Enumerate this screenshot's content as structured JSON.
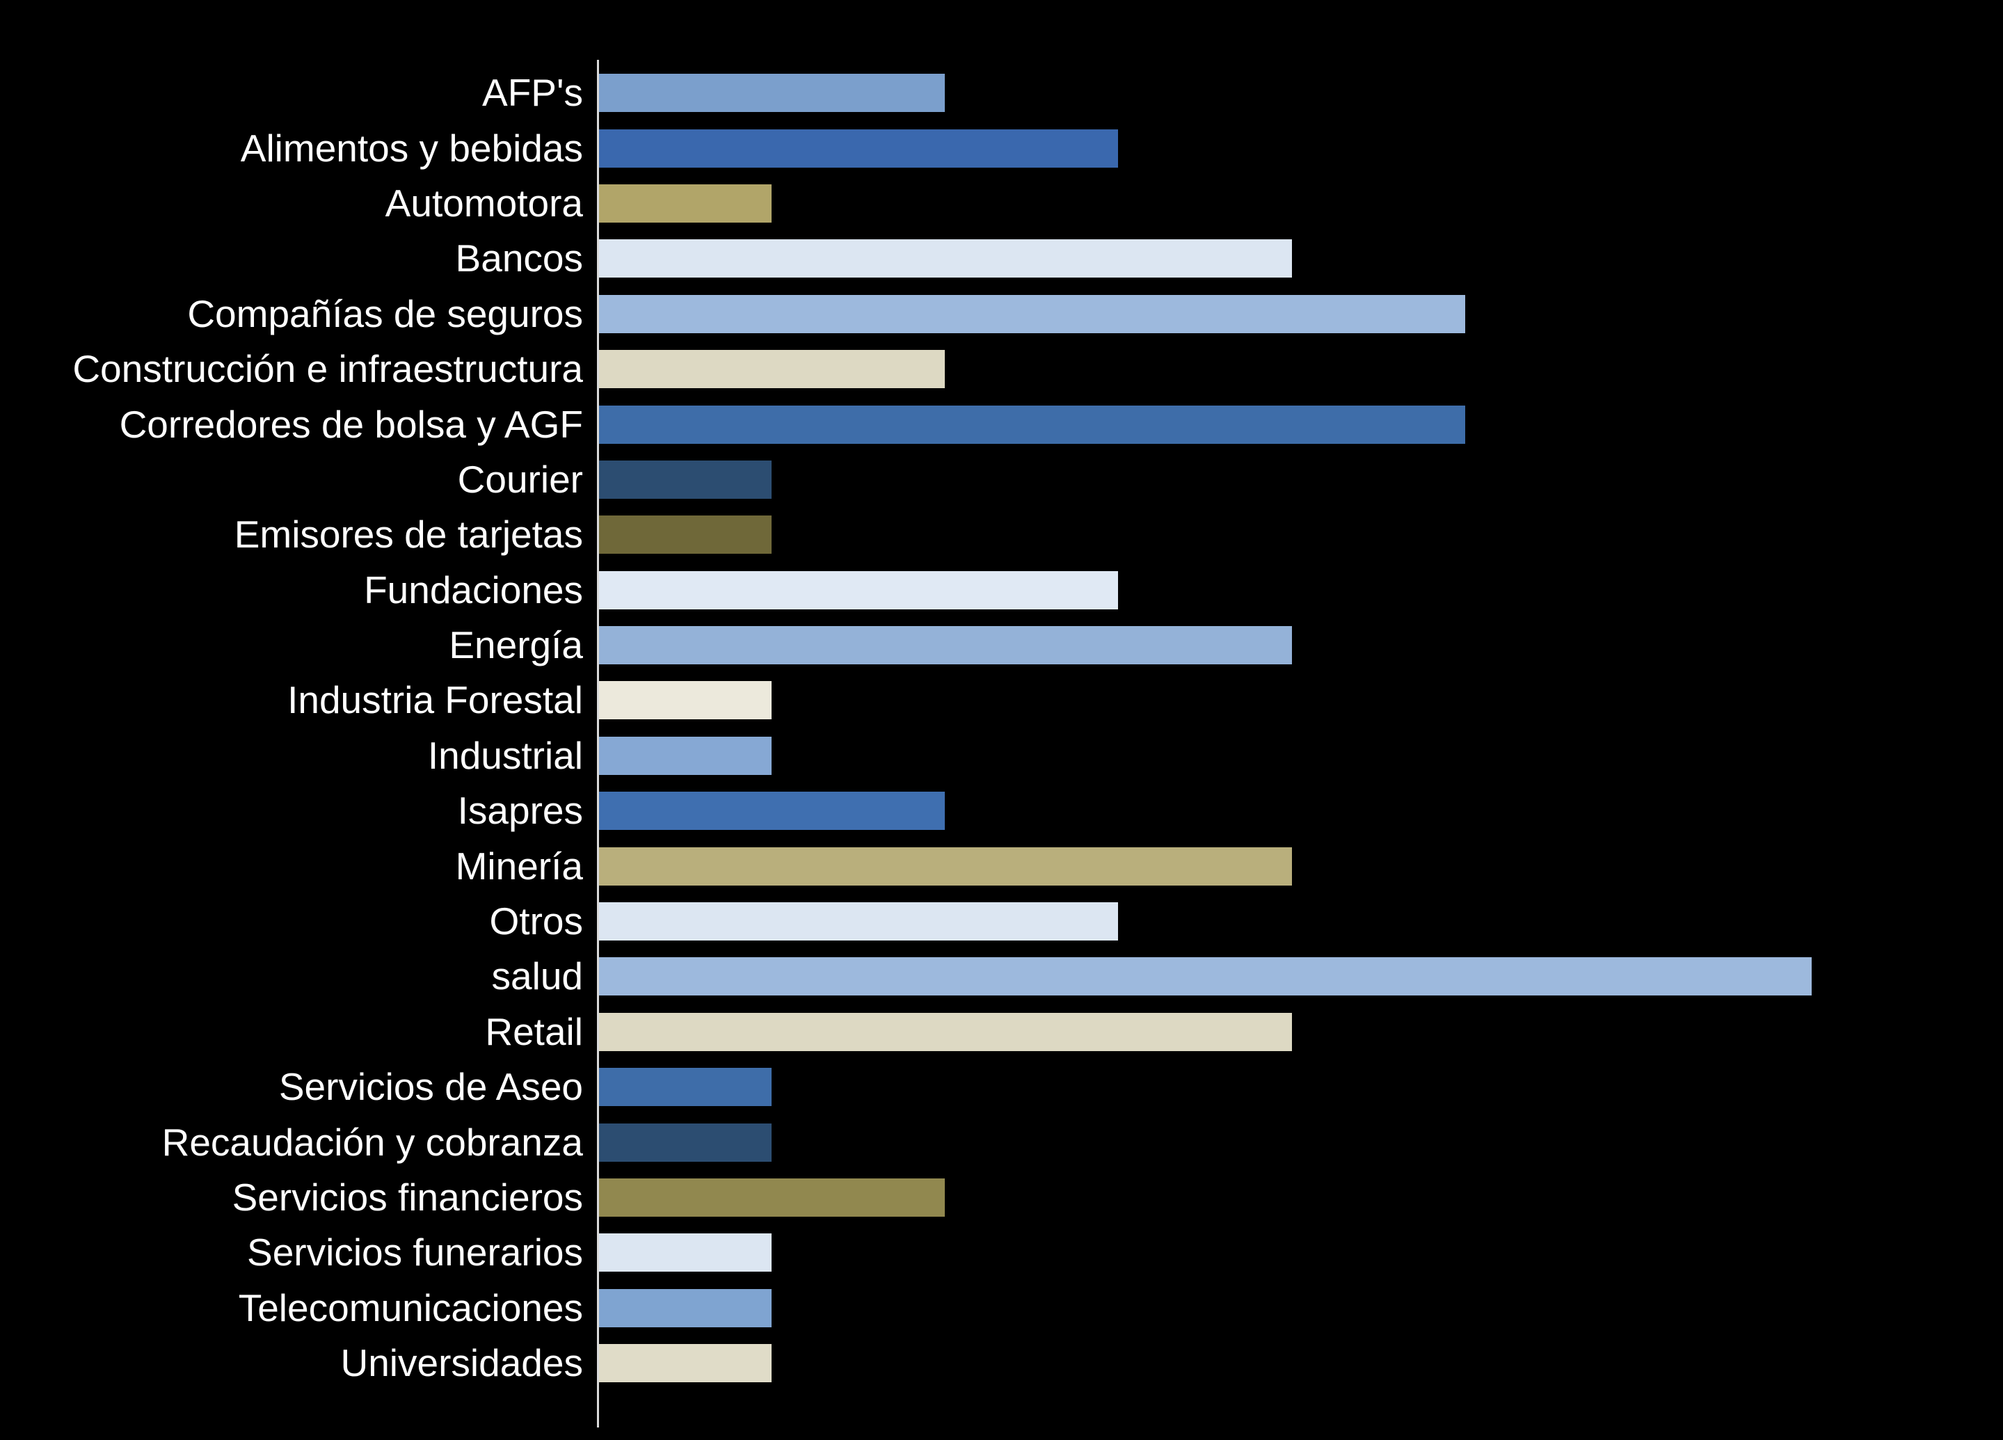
{
  "chart_data": {
    "type": "bar",
    "orientation": "horizontal",
    "title": "",
    "xlabel": "",
    "ylabel": "",
    "xlim": [
      0,
      7
    ],
    "grid": false,
    "legend": false,
    "background_color": "#000000",
    "label_color": "#FFFFFF",
    "axis_color": "#DADADA",
    "categories": [
      "AFP's",
      "Alimentos y bebidas",
      "Automotora",
      "Bancos",
      "Compañías de seguros",
      "Construcción e infraestructura",
      "Corredores de bolsa y AGF",
      "Courier",
      "Emisores de tarjetas",
      "Fundaciones",
      "Energía",
      "Industria Forestal",
      "Industrial",
      "Isapres",
      "Minería",
      "Otros",
      "salud",
      "Retail",
      "Servicios de Aseo",
      "Recaudación y cobranza",
      "Servicios financieros",
      "Servicios funerarios",
      "Telecomunicaciones",
      "Universidades"
    ],
    "values": [
      2,
      3,
      1,
      4,
      5,
      2,
      5,
      1,
      1,
      3,
      4,
      1,
      1,
      2,
      4,
      3,
      7,
      4,
      1,
      1,
      2,
      1,
      1,
      1
    ],
    "colors": [
      "#7B9FCC",
      "#3A68AE",
      "#B1A569",
      "#DCE6F2",
      "#9DB9DD",
      "#DDD9C3",
      "#3E6DA9",
      "#2C4D71",
      "#6F6839",
      "#E0E9F4",
      "#94B2D8",
      "#ECE9DC",
      "#86A8D4",
      "#3F6FB0",
      "#B9AF7C",
      "#DCE6F2",
      "#9DB9DD",
      "#DDD9C3",
      "#3E6DA9",
      "#2C4D71",
      "#91884F",
      "#DCE6F2",
      "#7FA4D1",
      "#E0DCC8"
    ]
  }
}
